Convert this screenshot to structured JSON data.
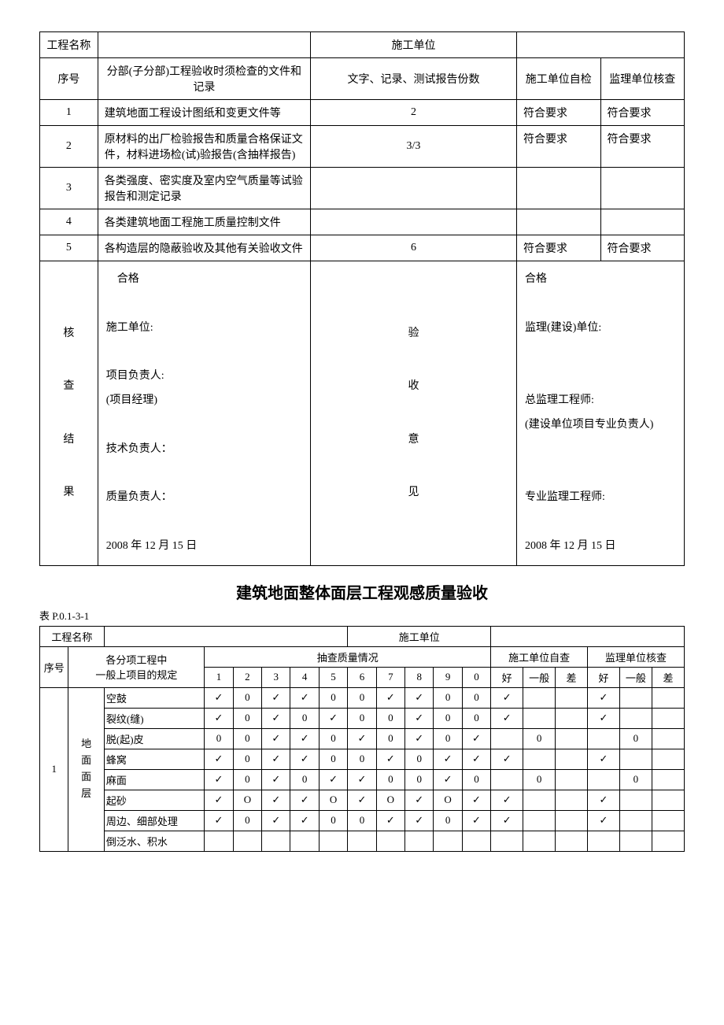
{
  "table1": {
    "h_project_name": "工程名称",
    "h_construction_unit": "施工单位",
    "h_seq": "序号",
    "h_docs": "分部(子分部)工程验收时须检查的文件和记录",
    "h_copies": "文字、记录、测试报告份数",
    "h_self": "施工单位自检",
    "h_super": "监理单位核查",
    "rows": [
      {
        "n": "1",
        "doc": "建筑地面工程设计图纸和变更文件等",
        "cp": "2",
        "self": "符合要求",
        "sup": "符合要求"
      },
      {
        "n": "2",
        "doc": "原材料的出厂检验报告和质量合格保证文件，材料进场检(试)验报告(含抽样报告)",
        "cp": "3/3",
        "self": "符合要求",
        "sup": "符合要求"
      },
      {
        "n": "3",
        "doc": "各类强度、密实度及室内空气质量等试验报告和测定记录",
        "cp": "",
        "self": "",
        "sup": ""
      },
      {
        "n": "4",
        "doc": "各类建筑地面工程施工质量控制文件",
        "cp": "",
        "self": "",
        "sup": ""
      },
      {
        "n": "5",
        "doc": "各构造层的隐蔽验收及其他有关验收文件",
        "cp": "6",
        "self": "符合要求",
        "sup": "符合要求"
      }
    ],
    "check_result_label": "核\n\n查\n\n结\n\n果",
    "accept_opinion_label": "验\n\n收\n\n意\n\n见",
    "left_block_lines": [
      "　合格",
      "",
      "施工单位:",
      "",
      "项目负责人:",
      "(项目经理)",
      "",
      "技术负责人：",
      "",
      "质量负责人：",
      "",
      "2008 年 12 月 15 日"
    ],
    "right_block_lines": [
      "合格",
      "",
      "监理(建设)单位:",
      "",
      "",
      "总监理工程师:",
      "(建设单位项目专业负责人)",
      "",
      "",
      "专业监理工程师:",
      "",
      " 2008 年 12 月 15 日"
    ]
  },
  "title2": "建筑地面整体面层工程观感质量验收",
  "table2_no": "表 P.0.1-3-1",
  "table2": {
    "h_project_name": "工程名称",
    "h_construction_unit": "施工单位",
    "h_seq": "序号",
    "h_item": "各分项工程中\n一般上项目的规定",
    "h_sample": "抽查质量情况",
    "h_self": "施工单位自查",
    "h_super": "监理单位核查",
    "cols_num": [
      "1",
      "2",
      "3",
      "4",
      "5",
      "6",
      "7",
      "8",
      "9",
      "0"
    ],
    "cols_rate": [
      "好",
      "一般",
      "差"
    ],
    "group_no": "1",
    "group_label": "地\n面\n面\n层",
    "items": [
      {
        "name": "空鼓",
        "v": [
          "✓",
          "0",
          "✓",
          "✓",
          "0",
          "0",
          "✓",
          "✓",
          "0",
          "0"
        ],
        "self": [
          "✓",
          "",
          ""
        ],
        "sup": [
          "✓",
          "",
          ""
        ]
      },
      {
        "name": "裂纹(缝)",
        "v": [
          "✓",
          "0",
          "✓",
          "0",
          "✓",
          "0",
          "0",
          "✓",
          "0",
          "0"
        ],
        "self": [
          "✓",
          "",
          ""
        ],
        "sup": [
          "✓",
          "",
          ""
        ]
      },
      {
        "name": "脱(起)皮",
        "v": [
          "0",
          "0",
          "✓",
          "✓",
          "0",
          "✓",
          "0",
          "✓",
          "0",
          "✓"
        ],
        "self": [
          "",
          "0",
          ""
        ],
        "sup": [
          "",
          "0",
          ""
        ]
      },
      {
        "name": "蜂窝",
        "v": [
          "✓",
          "0",
          "✓",
          "✓",
          "0",
          "0",
          "✓",
          "0",
          "✓",
          "✓"
        ],
        "self": [
          "✓",
          "",
          ""
        ],
        "sup": [
          "✓",
          "",
          ""
        ]
      },
      {
        "name": "麻面",
        "v": [
          "✓",
          "0",
          "✓",
          "0",
          "✓",
          "✓",
          "0",
          "0",
          "✓",
          "0"
        ],
        "self": [
          "",
          "0",
          ""
        ],
        "sup": [
          "",
          "0",
          ""
        ]
      },
      {
        "name": "起砂",
        "v": [
          "✓",
          "O",
          "✓",
          "✓",
          "O",
          "✓",
          "O",
          "✓",
          "O",
          "✓"
        ],
        "self": [
          "✓",
          "",
          ""
        ],
        "sup": [
          "✓",
          "",
          ""
        ]
      },
      {
        "name": "周边、细部处理",
        "v": [
          "✓",
          "0",
          "✓",
          "✓",
          "0",
          "0",
          "✓",
          "✓",
          "0",
          "✓"
        ],
        "self": [
          "✓",
          "",
          ""
        ],
        "sup": [
          "✓",
          "",
          ""
        ]
      },
      {
        "name": "倒泛水、积水",
        "v": [
          "",
          "",
          "",
          "",
          "",
          "",
          "",
          "",
          "",
          ""
        ],
        "self": [
          "",
          "",
          ""
        ],
        "sup": [
          "",
          "",
          ""
        ]
      }
    ]
  }
}
